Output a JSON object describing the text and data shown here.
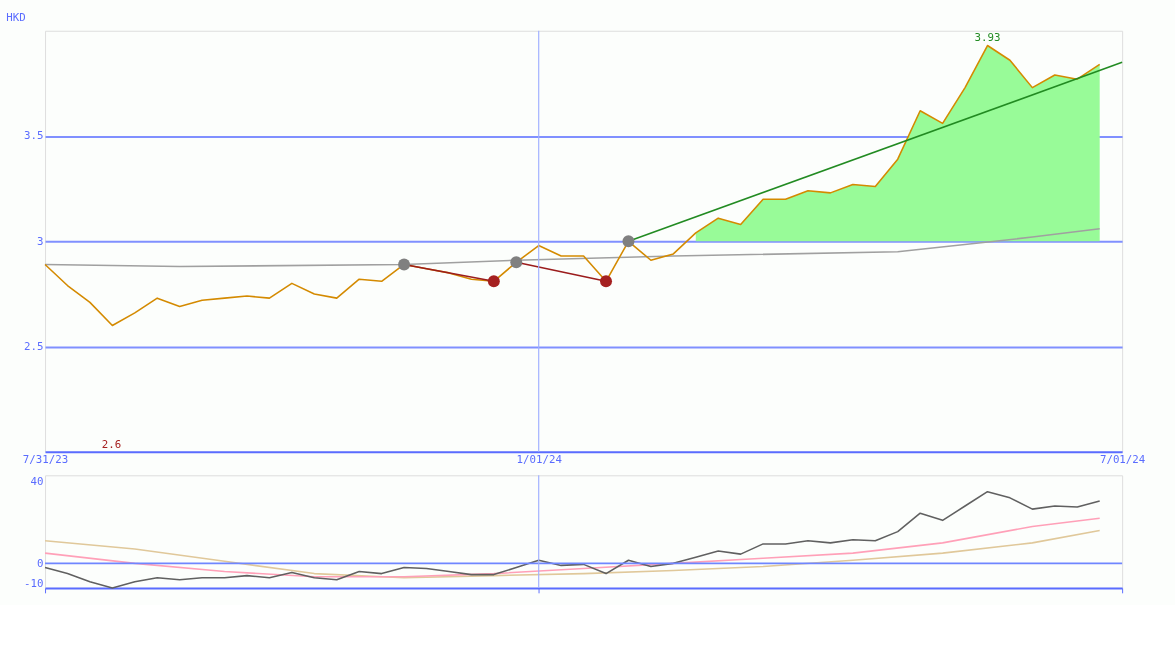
{
  "chart_data": [
    {
      "type": "line",
      "ylabel": "HKD",
      "x": [
        "2023-07-31",
        "2023-08-07",
        "2023-08-14",
        "2023-08-21",
        "2023-08-28",
        "2023-09-04",
        "2023-09-11",
        "2023-09-18",
        "2023-09-25",
        "2023-10-02",
        "2023-10-09",
        "2023-10-16",
        "2023-10-23",
        "2023-10-30",
        "2023-11-06",
        "2023-11-13",
        "2023-11-20",
        "2023-11-27",
        "2023-12-04",
        "2023-12-11",
        "2023-12-18",
        "2023-12-25",
        "2024-01-01",
        "2024-01-08",
        "2024-01-15",
        "2024-01-22",
        "2024-01-29",
        "2024-02-05",
        "2024-02-12",
        "2024-02-19",
        "2024-02-26",
        "2024-03-04",
        "2024-03-11",
        "2024-03-18",
        "2024-03-25",
        "2024-04-01",
        "2024-04-08",
        "2024-04-15",
        "2024-04-22",
        "2024-04-29",
        "2024-05-06",
        "2024-05-13",
        "2024-05-20",
        "2024-05-27",
        "2024-06-03",
        "2024-06-10",
        "2024-06-17",
        "2024-06-24"
      ],
      "series": [
        {
          "type": "line",
          "color": "#a0a0a0",
          "x": [
            "2023-07-31",
            "2023-09-11",
            "2023-11-20",
            "2023-12-25",
            "2024-02-12",
            "2024-04-22",
            "2024-06-03",
            "2024-06-24"
          ],
          "values": [
            2.89,
            2.88,
            2.89,
            2.91,
            2.93,
            2.95,
            3.02,
            3.06
          ]
        },
        {
          "type": "line",
          "color": "#d48a00",
          "values": [
            2.89,
            2.79,
            2.71,
            2.6,
            2.66,
            2.73,
            2.69,
            2.72,
            2.73,
            2.74,
            2.73,
            2.8,
            2.75,
            2.73,
            2.82,
            2.81,
            2.89,
            2.87,
            2.85,
            2.82,
            2.81,
            2.9,
            2.98,
            2.93,
            2.93,
            2.81,
            3.0,
            2.91,
            2.94,
            3.04,
            3.11,
            3.08,
            3.2,
            3.2,
            3.24,
            3.23,
            3.27,
            3.26,
            3.39,
            3.62,
            3.56,
            3.73,
            3.93,
            3.86,
            3.73,
            3.79,
            3.77,
            3.84
          ],
          "lower": [
            null,
            null,
            null,
            null,
            null,
            null,
            null,
            null,
            null,
            null,
            null,
            null,
            null,
            null,
            null,
            null,
            null,
            null,
            null,
            null,
            null,
            null,
            null,
            null,
            null,
            null,
            null,
            null,
            null,
            3.0,
            3.0,
            3.0,
            3.0,
            3.0,
            3.0,
            3.0,
            3.0,
            3.0,
            3.0,
            3.0,
            3.0,
            3.0,
            3.0,
            3.0,
            3.0,
            3.0,
            3.0,
            3.0
          ],
          "upper": [
            null,
            null,
            null,
            null,
            null,
            null,
            null,
            null,
            null,
            null,
            null,
            null,
            null,
            null,
            null,
            null,
            null,
            null,
            null,
            null,
            null,
            null,
            null,
            null,
            null,
            null,
            null,
            null,
            null,
            3.04,
            3.11,
            3.08,
            3.2,
            3.2,
            3.24,
            3.23,
            3.27,
            3.26,
            3.39,
            3.62,
            3.56,
            3.73,
            3.93,
            3.86,
            3.73,
            3.79,
            3.77,
            3.84
          ]
        },
        {
          "type": "line",
          "color": "#228b22",
          "x": [
            "2024-01-29",
            "2024-07-01"
          ],
          "values": [
            3.0,
            3.85
          ]
        },
        {
          "type": "line",
          "color": "#9b1c1c",
          "x": [
            "2023-11-20",
            "2023-12-18"
          ],
          "values": [
            2.89,
            2.81
          ]
        },
        {
          "type": "line",
          "color": "#9b1c1c",
          "x": [
            "2023-12-25",
            "2024-01-22"
          ],
          "values": [
            2.9,
            2.81
          ]
        },
        {
          "type": "scatter",
          "color": "#808080",
          "x": [
            "2023-11-20",
            "2023-12-25",
            "2024-01-29"
          ],
          "values": [
            2.89,
            2.9,
            3.0
          ]
        },
        {
          "type": "scatter",
          "color": "#a52020",
          "x": [
            "2023-12-18",
            "2024-01-22"
          ],
          "values": [
            2.81,
            2.81
          ]
        }
      ],
      "xlim": [
        "2023-07-31",
        "2024-07-01"
      ],
      "xticks": [
        {
          "value": "2023-07-31",
          "label": "7/31/23"
        },
        {
          "value": "2024-01-01",
          "label": "1/01/24"
        },
        {
          "value": "2024-07-01",
          "label": "7/01/24"
        }
      ],
      "ylim": [
        2.0,
        4.0
      ],
      "yticks": [
        2.5,
        3,
        3.5
      ],
      "grid": "y",
      "ref_lines": [
        {
          "axis": "x",
          "value": "2024-01-01",
          "color": "#a0b0ff"
        }
      ],
      "annotations": [
        {
          "text": "3.93",
          "x": "2024-05-20",
          "y": 3.93
        },
        "2.6"
      ]
    },
    {
      "type": "line",
      "x": [
        "2023-07-31",
        "2023-08-07",
        "2023-08-14",
        "2023-08-21",
        "2023-08-28",
        "2023-09-04",
        "2023-09-11",
        "2023-09-18",
        "2023-09-25",
        "2023-10-02",
        "2023-10-09",
        "2023-10-16",
        "2023-10-23",
        "2023-10-30",
        "2023-11-06",
        "2023-11-13",
        "2023-11-20",
        "2023-11-27",
        "2023-12-04",
        "2023-12-11",
        "2023-12-18",
        "2023-12-25",
        "2024-01-01",
        "2024-01-08",
        "2024-01-15",
        "2024-01-22",
        "2024-01-29",
        "2024-02-05",
        "2024-02-12",
        "2024-02-19",
        "2024-02-26",
        "2024-03-04",
        "2024-03-11",
        "2024-03-18",
        "2024-03-25",
        "2024-04-01",
        "2024-04-08",
        "2024-04-15",
        "2024-04-22",
        "2024-04-29",
        "2024-05-06",
        "2024-05-13",
        "2024-05-20",
        "2024-05-27",
        "2024-06-03",
        "2024-06-10",
        "2024-06-17",
        "2024-06-24"
      ],
      "series": [
        {
          "type": "line",
          "color": "#e0c89a",
          "x": [
            "2023-07-31",
            "2023-08-28",
            "2023-09-25",
            "2023-10-23",
            "2023-11-20",
            "2023-12-18",
            "2024-01-15",
            "2024-02-12",
            "2024-03-11",
            "2024-04-08",
            "2024-05-06",
            "2024-06-03",
            "2024-06-24"
          ],
          "values": [
            11,
            7,
            1,
            -5,
            -7,
            -6,
            -5,
            -3.5,
            -1.5,
            1.5,
            5,
            10,
            16
          ]
        },
        {
          "type": "line",
          "color": "#ffa0b8",
          "x": [
            "2023-07-31",
            "2023-08-28",
            "2023-09-25",
            "2023-10-23",
            "2023-11-20",
            "2023-12-18",
            "2024-01-15",
            "2024-02-12",
            "2024-03-11",
            "2024-04-08",
            "2024-05-06",
            "2024-06-03",
            "2024-06-24"
          ],
          "values": [
            5,
            0,
            -4,
            -6.5,
            -6.5,
            -5,
            -2.5,
            0,
            2.5,
            5,
            10,
            18,
            22
          ]
        },
        {
          "type": "line",
          "color": "#606060",
          "values": [
            -2,
            -5,
            -9,
            -12,
            -9,
            -7,
            -8,
            -7,
            -7,
            -6,
            -7,
            -4.5,
            -7,
            -8,
            -4,
            -5,
            -2,
            -2.5,
            -4,
            -5.5,
            -5.5,
            -2,
            1.5,
            -1,
            -0.5,
            -5,
            1.5,
            -1.5,
            0,
            3,
            6,
            4.5,
            9.5,
            9.5,
            11,
            10,
            11.5,
            11,
            15.5,
            24.5,
            21,
            28,
            35,
            32,
            26.5,
            28,
            27.5,
            30.5
          ]
        }
      ],
      "xlim": [
        "2023-07-31",
        "2024-07-01"
      ],
      "ylim": [
        -12,
        43
      ],
      "yticks": [
        -10,
        0,
        40
      ],
      "tick_labels": "y",
      "xticks": [
        {
          "value": "2023-07-31",
          "label": null
        },
        {
          "value": "2024-01-01",
          "label": null
        },
        {
          "value": "2024-07-01",
          "label": null
        }
      ],
      "ref_lines": [
        {
          "axis": "y",
          "value": 0,
          "color": "#6f86ff"
        },
        {
          "axis": "x",
          "value": "2024-01-01",
          "color": "#a0b0ff"
        }
      ]
    }
  ]
}
